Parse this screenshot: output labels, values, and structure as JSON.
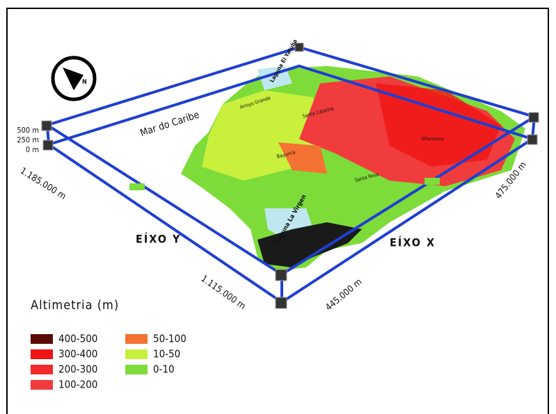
{
  "map": {
    "sea_label": "Mar do Caribe",
    "heights": [
      "500 m",
      "250 m",
      "0 m"
    ],
    "y_axis": {
      "label": "EÍXO Y",
      "start": "1.185.000 m",
      "end": "1.115.000 m"
    },
    "x_axis": {
      "label": "EÍXO X",
      "start": "445.000 m",
      "end": "475.000 m"
    },
    "places": [
      "Laguna El Yatuba",
      "Laguna La Virgen",
      "Arroyo Grande",
      "Santa Catalina",
      "Bayunca",
      "Santa Rosa",
      "Villanueva"
    ]
  },
  "legend": {
    "title": "Altimetria (m)",
    "items": [
      {
        "label": "400-500",
        "color": "#5a0c04"
      },
      {
        "label": "300-400",
        "color": "#f01414"
      },
      {
        "label": "200-300",
        "color": "#f02a2a"
      },
      {
        "label": "100-200",
        "color": "#f03c3c"
      },
      {
        "label": "50-100",
        "color": "#f47232"
      },
      {
        "label": "10-50",
        "color": "#c8f03c"
      },
      {
        "label": "0-10",
        "color": "#7ddc3a"
      }
    ]
  }
}
